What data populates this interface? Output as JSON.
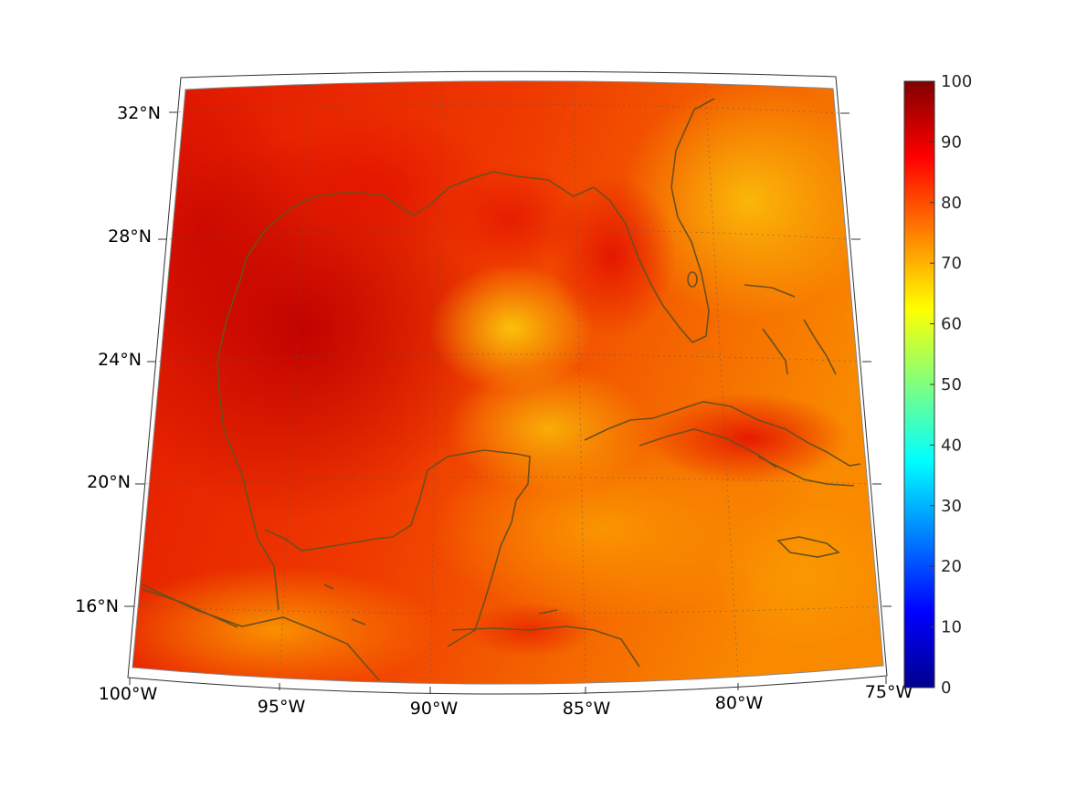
{
  "map": {
    "lon_labels": [
      "100°W",
      "95°W",
      "90°W",
      "85°W",
      "80°W",
      "75°W"
    ],
    "lat_labels": [
      "32°N",
      "28°N",
      "24°N",
      "20°N",
      "16°N"
    ],
    "colors": {
      "coastline": "#6b4f1d",
      "deep_red": "#c80000",
      "red": "#e81400",
      "orange_red": "#f44a00",
      "orange": "#fb8c00",
      "yellow_orange": "#fcbc08"
    }
  },
  "colorbar": {
    "ticks": [
      "0",
      "10",
      "20",
      "30",
      "40",
      "50",
      "60",
      "70",
      "80",
      "90",
      "100"
    ],
    "colormap": "jet"
  }
}
